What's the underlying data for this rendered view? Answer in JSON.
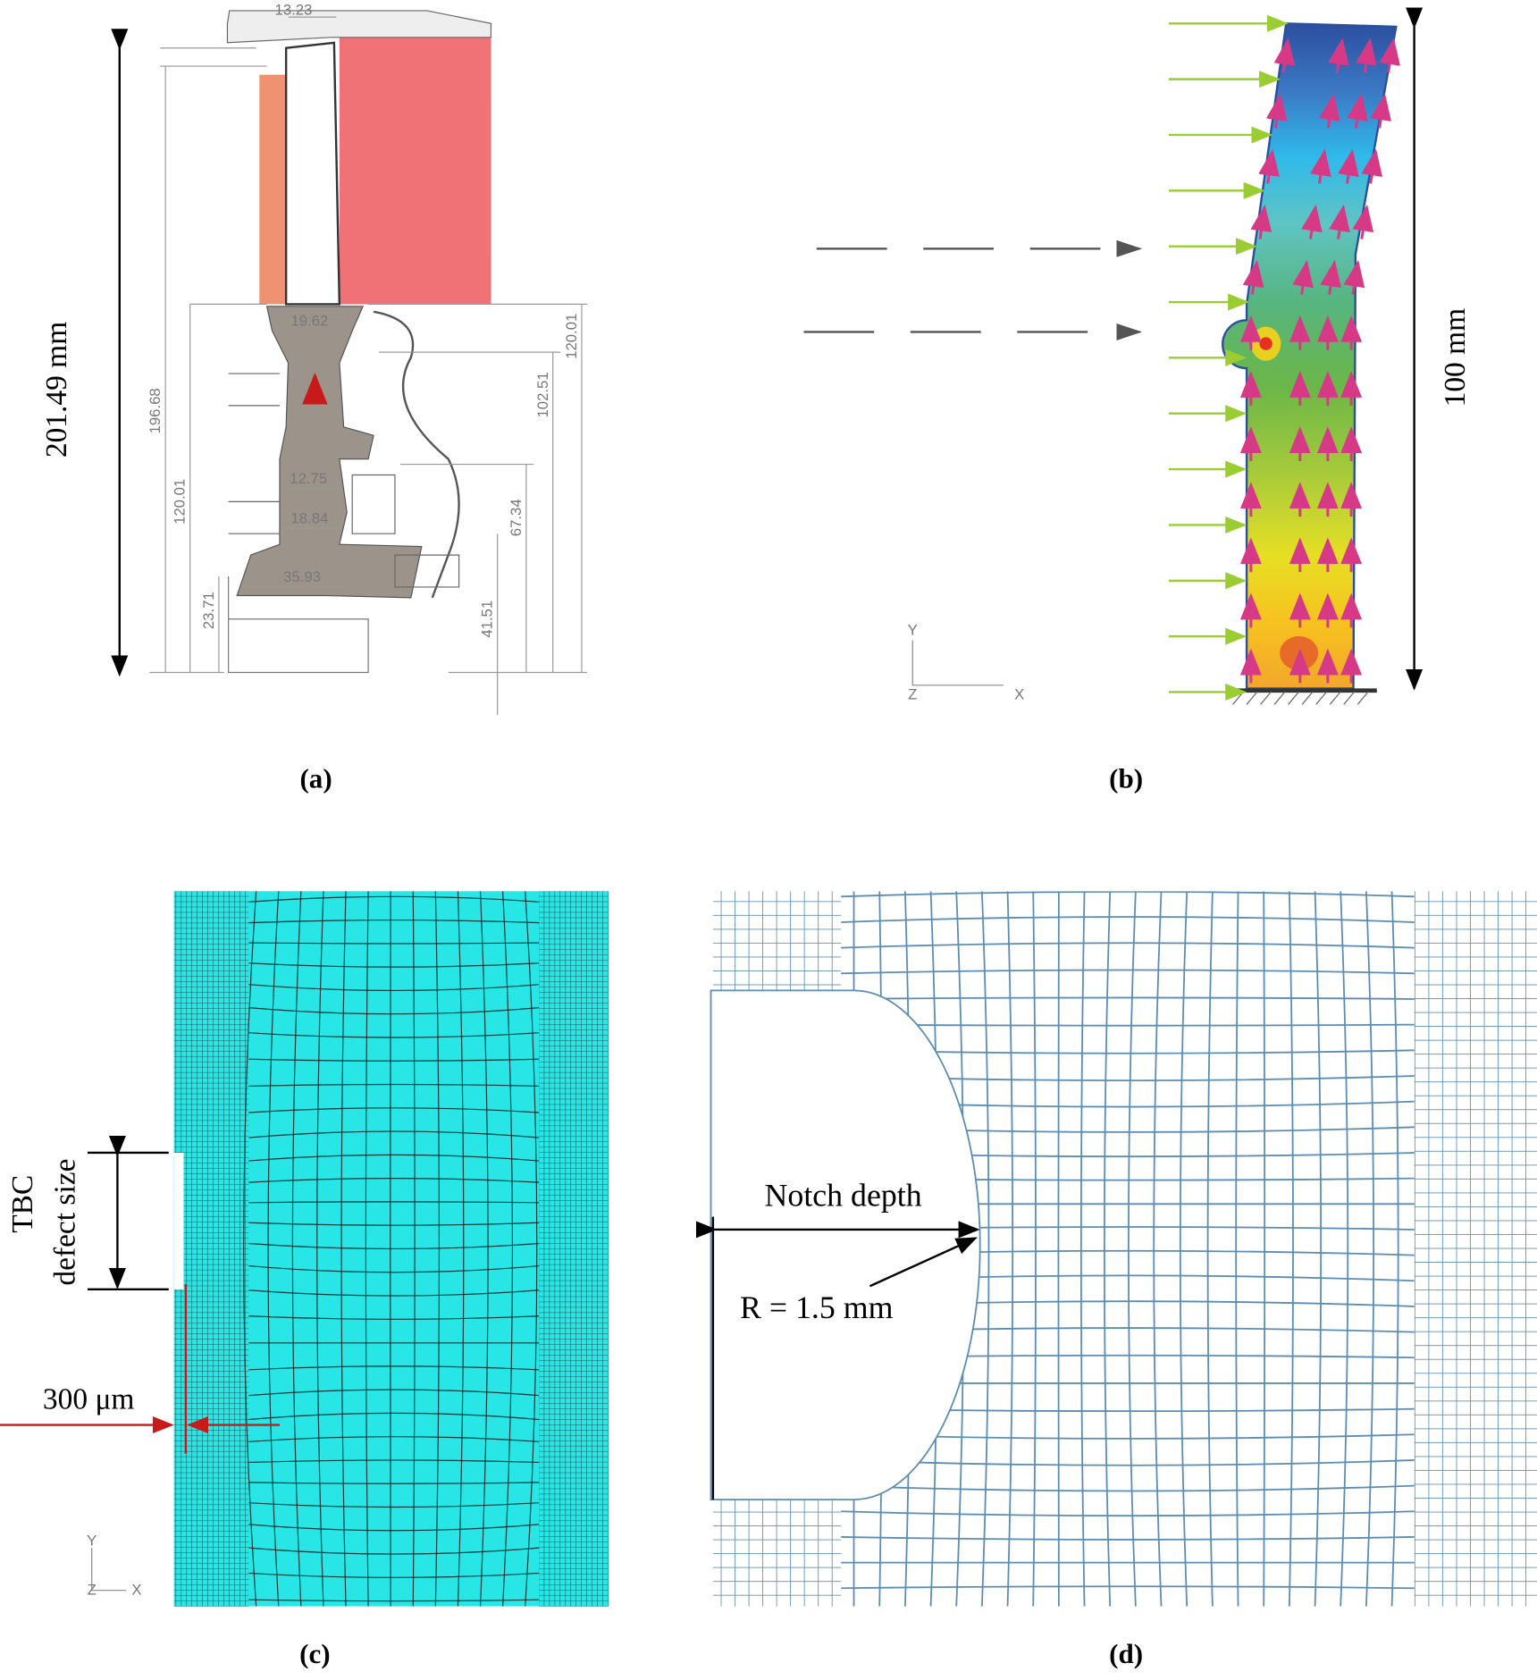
{
  "panel_a": {
    "caption": "(a)",
    "overall_height": "201.49 mm",
    "dimensions": {
      "top_width": "13.23",
      "left_1": "196.68",
      "left_2": "120.01",
      "left_3": "23.71",
      "neck_width": "19.62",
      "shank_width_1": "12.75",
      "shank_width_2": "18.84",
      "root_width": "35.93",
      "right_1": "102.51",
      "right_2": "120.01",
      "right_3": "67.34",
      "right_4": "41.51"
    }
  },
  "panel_b": {
    "caption": "(b)",
    "height": "100 mm",
    "axes": {
      "y": "Y",
      "z": "Z",
      "x": "X"
    }
  },
  "panel_c": {
    "caption": "(c)",
    "defect_label_1": "TBC",
    "defect_label_2": "defect size",
    "thickness": "300 μm",
    "axes": {
      "y": "Y",
      "z": "Z",
      "x": "X"
    }
  },
  "panel_d": {
    "caption": "(d)",
    "notch_depth": "Notch depth",
    "radius": "R = 1.5 mm"
  }
}
